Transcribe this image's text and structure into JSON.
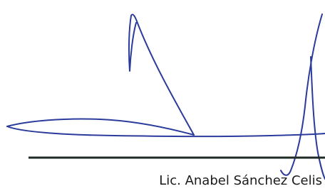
{
  "signature": {
    "name": "Lic. Anabel Sánchez Celis"
  }
}
